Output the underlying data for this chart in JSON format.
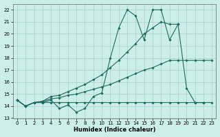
{
  "xlabel": "Humidex (Indice chaleur)",
  "xlim": [
    -0.5,
    23.5
  ],
  "ylim": [
    13,
    22.5
  ],
  "yticks": [
    13,
    14,
    15,
    16,
    17,
    18,
    19,
    20,
    21,
    22
  ],
  "xticks": [
    0,
    1,
    2,
    3,
    4,
    5,
    6,
    7,
    8,
    9,
    10,
    11,
    12,
    13,
    14,
    15,
    16,
    17,
    18,
    19,
    20,
    21,
    22,
    23
  ],
  "bg_color": "#cceee8",
  "grid_color": "#aaccc6",
  "line_color": "#1a6b5f",
  "lines": [
    {
      "x": [
        0,
        1,
        2,
        3,
        4,
        5,
        6,
        7,
        8,
        9,
        10,
        11,
        12,
        13,
        14,
        15,
        16,
        17,
        18,
        19
      ],
      "y": [
        14.5,
        14.0,
        14.3,
        14.3,
        14.5,
        13.8,
        14.1,
        13.5,
        13.8,
        14.8,
        15.1,
        18.0,
        20.5,
        22.0,
        21.5,
        19.5,
        22.0,
        22.0,
        19.5,
        20.8
      ]
    },
    {
      "x": [
        0,
        1,
        2,
        3,
        4,
        5,
        6,
        7,
        8,
        9,
        10,
        11,
        12,
        13,
        14,
        15,
        16,
        17,
        18,
        19,
        20,
        21,
        22
      ],
      "y": [
        14.5,
        14.0,
        14.3,
        14.4,
        14.8,
        14.9,
        15.2,
        15.5,
        15.8,
        16.2,
        16.6,
        17.2,
        17.8,
        18.5,
        19.2,
        20.0,
        20.5,
        21.0,
        20.8,
        20.8,
        15.5,
        14.3,
        14.3
      ]
    },
    {
      "x": [
        0,
        1,
        2,
        3,
        4,
        5,
        6,
        7,
        8,
        9,
        10,
        11,
        12,
        13,
        14,
        15,
        16,
        17,
        18,
        19,
        20,
        21,
        22,
        23
      ],
      "y": [
        14.5,
        14.0,
        14.3,
        14.4,
        14.6,
        14.7,
        14.9,
        15.0,
        15.2,
        15.4,
        15.6,
        15.8,
        16.1,
        16.4,
        16.7,
        17.0,
        17.2,
        17.5,
        17.8,
        17.8,
        17.8,
        17.8,
        17.8,
        17.8
      ]
    },
    {
      "x": [
        0,
        1,
        2,
        3,
        4,
        5,
        6,
        7,
        8,
        9,
        10,
        11,
        12,
        13,
        14,
        15,
        16,
        17,
        18,
        19,
        20,
        21,
        22,
        23
      ],
      "y": [
        14.5,
        14.0,
        14.3,
        14.3,
        14.3,
        14.3,
        14.3,
        14.3,
        14.3,
        14.3,
        14.3,
        14.3,
        14.3,
        14.3,
        14.3,
        14.3,
        14.3,
        14.3,
        14.3,
        14.3,
        14.3,
        14.3,
        14.3,
        14.3
      ]
    }
  ]
}
